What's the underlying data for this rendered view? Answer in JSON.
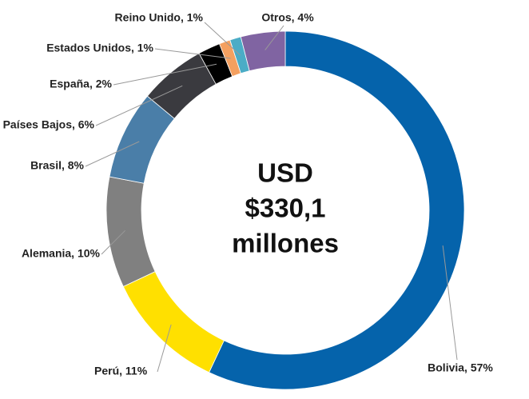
{
  "chart_data": {
    "type": "donut",
    "values": [
      57,
      11,
      10,
      8,
      6,
      2,
      1,
      1,
      4
    ],
    "value_labels": [
      "Bolivia, 57%",
      "Perú, 11%",
      "Alemania, 10%",
      "Brasil, 8%",
      "Países Bajos, 6%",
      "España, 2%",
      "Estados Unidos, 1%",
      "Reino Unido, 1%",
      "Otros, 4%"
    ],
    "colors": [
      "#0563ab",
      "#ffe000",
      "#808080",
      "#4a7ea8",
      "#3a3a3f",
      "#000000",
      "#f4a060",
      "#4bacc6",
      "#8064a2"
    ],
    "center_text": [
      "USD",
      "$330,1",
      "millones"
    ]
  }
}
